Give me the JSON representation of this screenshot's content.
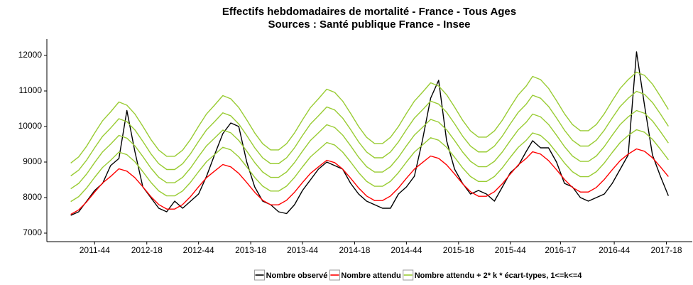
{
  "chart_data": {
    "type": "line",
    "title": "Effectifs hebdomadaires de mortalité  - France - Tous Ages",
    "subtitle": "Sources : Santé publique France - Insee",
    "x": [
      "2011-32",
      "2011-36",
      "2011-40",
      "2011-44",
      "2011-48",
      "2011-52",
      "2012-04",
      "2012-08",
      "2012-12",
      "2012-16",
      "2012-20",
      "2012-24",
      "2012-28",
      "2012-32",
      "2012-36",
      "2012-40",
      "2012-44",
      "2012-48",
      "2012-52",
      "2013-04",
      "2013-08",
      "2013-12",
      "2013-16",
      "2013-20",
      "2013-24",
      "2013-28",
      "2013-32",
      "2013-36",
      "2013-40",
      "2013-44",
      "2013-48",
      "2013-52",
      "2014-04",
      "2014-08",
      "2014-12",
      "2014-16",
      "2014-20",
      "2014-24",
      "2014-28",
      "2014-32",
      "2014-36",
      "2014-40",
      "2014-44",
      "2014-48",
      "2014-52",
      "2015-04",
      "2015-08",
      "2015-12",
      "2015-16",
      "2015-20",
      "2015-24",
      "2015-28",
      "2015-32",
      "2015-36",
      "2015-40",
      "2015-44",
      "2015-48",
      "2015-52",
      "2016-03",
      "2016-07",
      "2016-11",
      "2016-15",
      "2016-19",
      "2016-23",
      "2016-27",
      "2016-31",
      "2016-35",
      "2016-39",
      "2016-43",
      "2016-47",
      "2016-51",
      "2017-03",
      "2017-07",
      "2017-11",
      "2017-15",
      "2017-19"
    ],
    "series": [
      {
        "name": "Nombre observé",
        "color": "#000000",
        "values": [
          7500,
          7600,
          7900,
          8200,
          8400,
          8900,
          9100,
          10450,
          9300,
          8300,
          8000,
          7700,
          7600,
          7900,
          7700,
          7900,
          8100,
          8600,
          9200,
          9800,
          10100,
          10000,
          9000,
          8300,
          7900,
          7800,
          7600,
          7550,
          7800,
          8200,
          8500,
          8800,
          9000,
          8900,
          8800,
          8400,
          8100,
          7900,
          7800,
          7700,
          7700,
          8100,
          8300,
          8600,
          9600,
          10800,
          11300,
          9600,
          8800,
          8400,
          8100,
          8200,
          8100,
          7900,
          8300,
          8700,
          8900,
          9300,
          9600,
          9400,
          9400,
          9000,
          8400,
          8300,
          8000,
          7900,
          8000,
          8100,
          8400,
          8800,
          9200,
          12100,
          10600,
          9200,
          8600,
          8050
        ]
      },
      {
        "name": "Nombre attendu",
        "color": "#ff0000",
        "values": [
          7527,
          7654,
          7881,
          8154,
          8412,
          8594,
          8810,
          8744,
          8562,
          8304,
          8031,
          7804,
          7677,
          7677,
          7804,
          8031,
          8304,
          8562,
          8744,
          8930,
          8864,
          8682,
          8424,
          8151,
          7924,
          7797,
          7797,
          7924,
          8151,
          8424,
          8682,
          8864,
          9050,
          8984,
          8802,
          8544,
          8271,
          8044,
          7917,
          7917,
          8044,
          8271,
          8544,
          8802,
          8984,
          9170,
          9104,
          8922,
          8664,
          8391,
          8164,
          8037,
          8037,
          8164,
          8391,
          8664,
          8922,
          9104,
          9290,
          9224,
          9042,
          8784,
          8511,
          8284,
          8157,
          8157,
          8284,
          8511,
          8784,
          9042,
          9224,
          9370,
          9304,
          9122,
          8864,
          8591
        ]
      },
      {
        "name": "Nombre attendu + 2* k * écart-types, 1<=k<=4",
        "color": "#99cc33",
        "values": [
          7888,
          8027,
          8273,
          8570,
          8850,
          9048,
          9280,
          9208,
          9010,
          8730,
          8433,
          8187,
          8048,
          8048,
          8187,
          8433,
          8730,
          9010,
          9208,
          9415,
          9343,
          9145,
          8865,
          8568,
          8322,
          8183,
          8183,
          8322,
          8568,
          8865,
          9145,
          9343,
          9550,
          9478,
          9280,
          9000,
          8703,
          8457,
          8318,
          8318,
          8457,
          8703,
          9000,
          9280,
          9478,
          9685,
          9613,
          9415,
          9135,
          8838,
          8592,
          8453,
          8453,
          8592,
          8838,
          9135,
          9415,
          9613,
          9820,
          9748,
          9550,
          9270,
          8973,
          8727,
          8588,
          8588,
          8727,
          8973,
          9270,
          9550,
          9748,
          9910,
          9838,
          9640,
          9360,
          9063
        ]
      },
      {
        "color": "#99cc33",
        "values": [
          8249,
          8400,
          8665,
          8986,
          9288,
          9502,
          9750,
          9672,
          9458,
          9156,
          8835,
          8570,
          8419,
          8419,
          8570,
          8835,
          9156,
          9458,
          9672,
          9900,
          9822,
          9608,
          9306,
          8985,
          8720,
          8569,
          8569,
          8720,
          8985,
          9306,
          9608,
          9822,
          10050,
          9972,
          9758,
          9456,
          9135,
          8870,
          8719,
          8719,
          8870,
          9135,
          9456,
          9758,
          9972,
          10200,
          10122,
          9908,
          9606,
          9285,
          9020,
          8869,
          8869,
          9020,
          9285,
          9606,
          9908,
          10122,
          10350,
          10272,
          10058,
          9756,
          9435,
          9170,
          9019,
          9019,
          9170,
          9435,
          9756,
          10058,
          10272,
          10450,
          10372,
          10158,
          9856,
          9535
        ]
      },
      {
        "color": "#99cc33",
        "values": [
          8610,
          8773,
          9057,
          9402,
          9726,
          9956,
          10220,
          10136,
          9906,
          9582,
          9237,
          8953,
          8790,
          8790,
          8953,
          9237,
          9582,
          9906,
          10136,
          10385,
          10301,
          10071,
          9747,
          9402,
          9118,
          8955,
          8955,
          9118,
          9402,
          9747,
          10071,
          10301,
          10550,
          10466,
          10236,
          9912,
          9567,
          9283,
          9120,
          9120,
          9283,
          9567,
          9912,
          10236,
          10466,
          10715,
          10631,
          10401,
          10077,
          9732,
          9448,
          9285,
          9285,
          9448,
          9732,
          10077,
          10401,
          10631,
          10880,
          10796,
          10566,
          10242,
          9897,
          9613,
          9450,
          9450,
          9613,
          9897,
          10242,
          10566,
          10796,
          10990,
          10906,
          10676,
          10352,
          10007
        ]
      },
      {
        "color": "#99cc33",
        "values": [
          8971,
          9146,
          9449,
          9818,
          10164,
          10410,
          10690,
          10600,
          10354,
          10008,
          9639,
          9336,
          9161,
          9161,
          9336,
          9639,
          10008,
          10354,
          10600,
          10870,
          10780,
          10534,
          10188,
          9819,
          9516,
          9341,
          9341,
          9516,
          9819,
          10188,
          10534,
          10780,
          11050,
          10960,
          10714,
          10368,
          9999,
          9696,
          9521,
          9521,
          9696,
          9999,
          10368,
          10714,
          10960,
          11230,
          11140,
          10894,
          10548,
          10179,
          9876,
          9701,
          9701,
          9876,
          10179,
          10548,
          10894,
          11140,
          11410,
          11320,
          11074,
          10728,
          10359,
          10056,
          9881,
          9881,
          10056,
          10359,
          10728,
          11074,
          11320,
          11530,
          11440,
          11194,
          10848,
          10479
        ]
      }
    ],
    "xlim": [
      "2011-20",
      "2017-31"
    ],
    "xticks": [
      "2011-44",
      "2012-18",
      "2012-44",
      "2013-18",
      "2013-44",
      "2014-18",
      "2014-44",
      "2015-18",
      "2015-44",
      "2016-17",
      "2016-44",
      "2017-18"
    ],
    "ylim": [
      6760,
      12460
    ],
    "yticks": [
      7000,
      8000,
      9000,
      10000,
      11000,
      12000
    ],
    "legend": "bottom"
  }
}
